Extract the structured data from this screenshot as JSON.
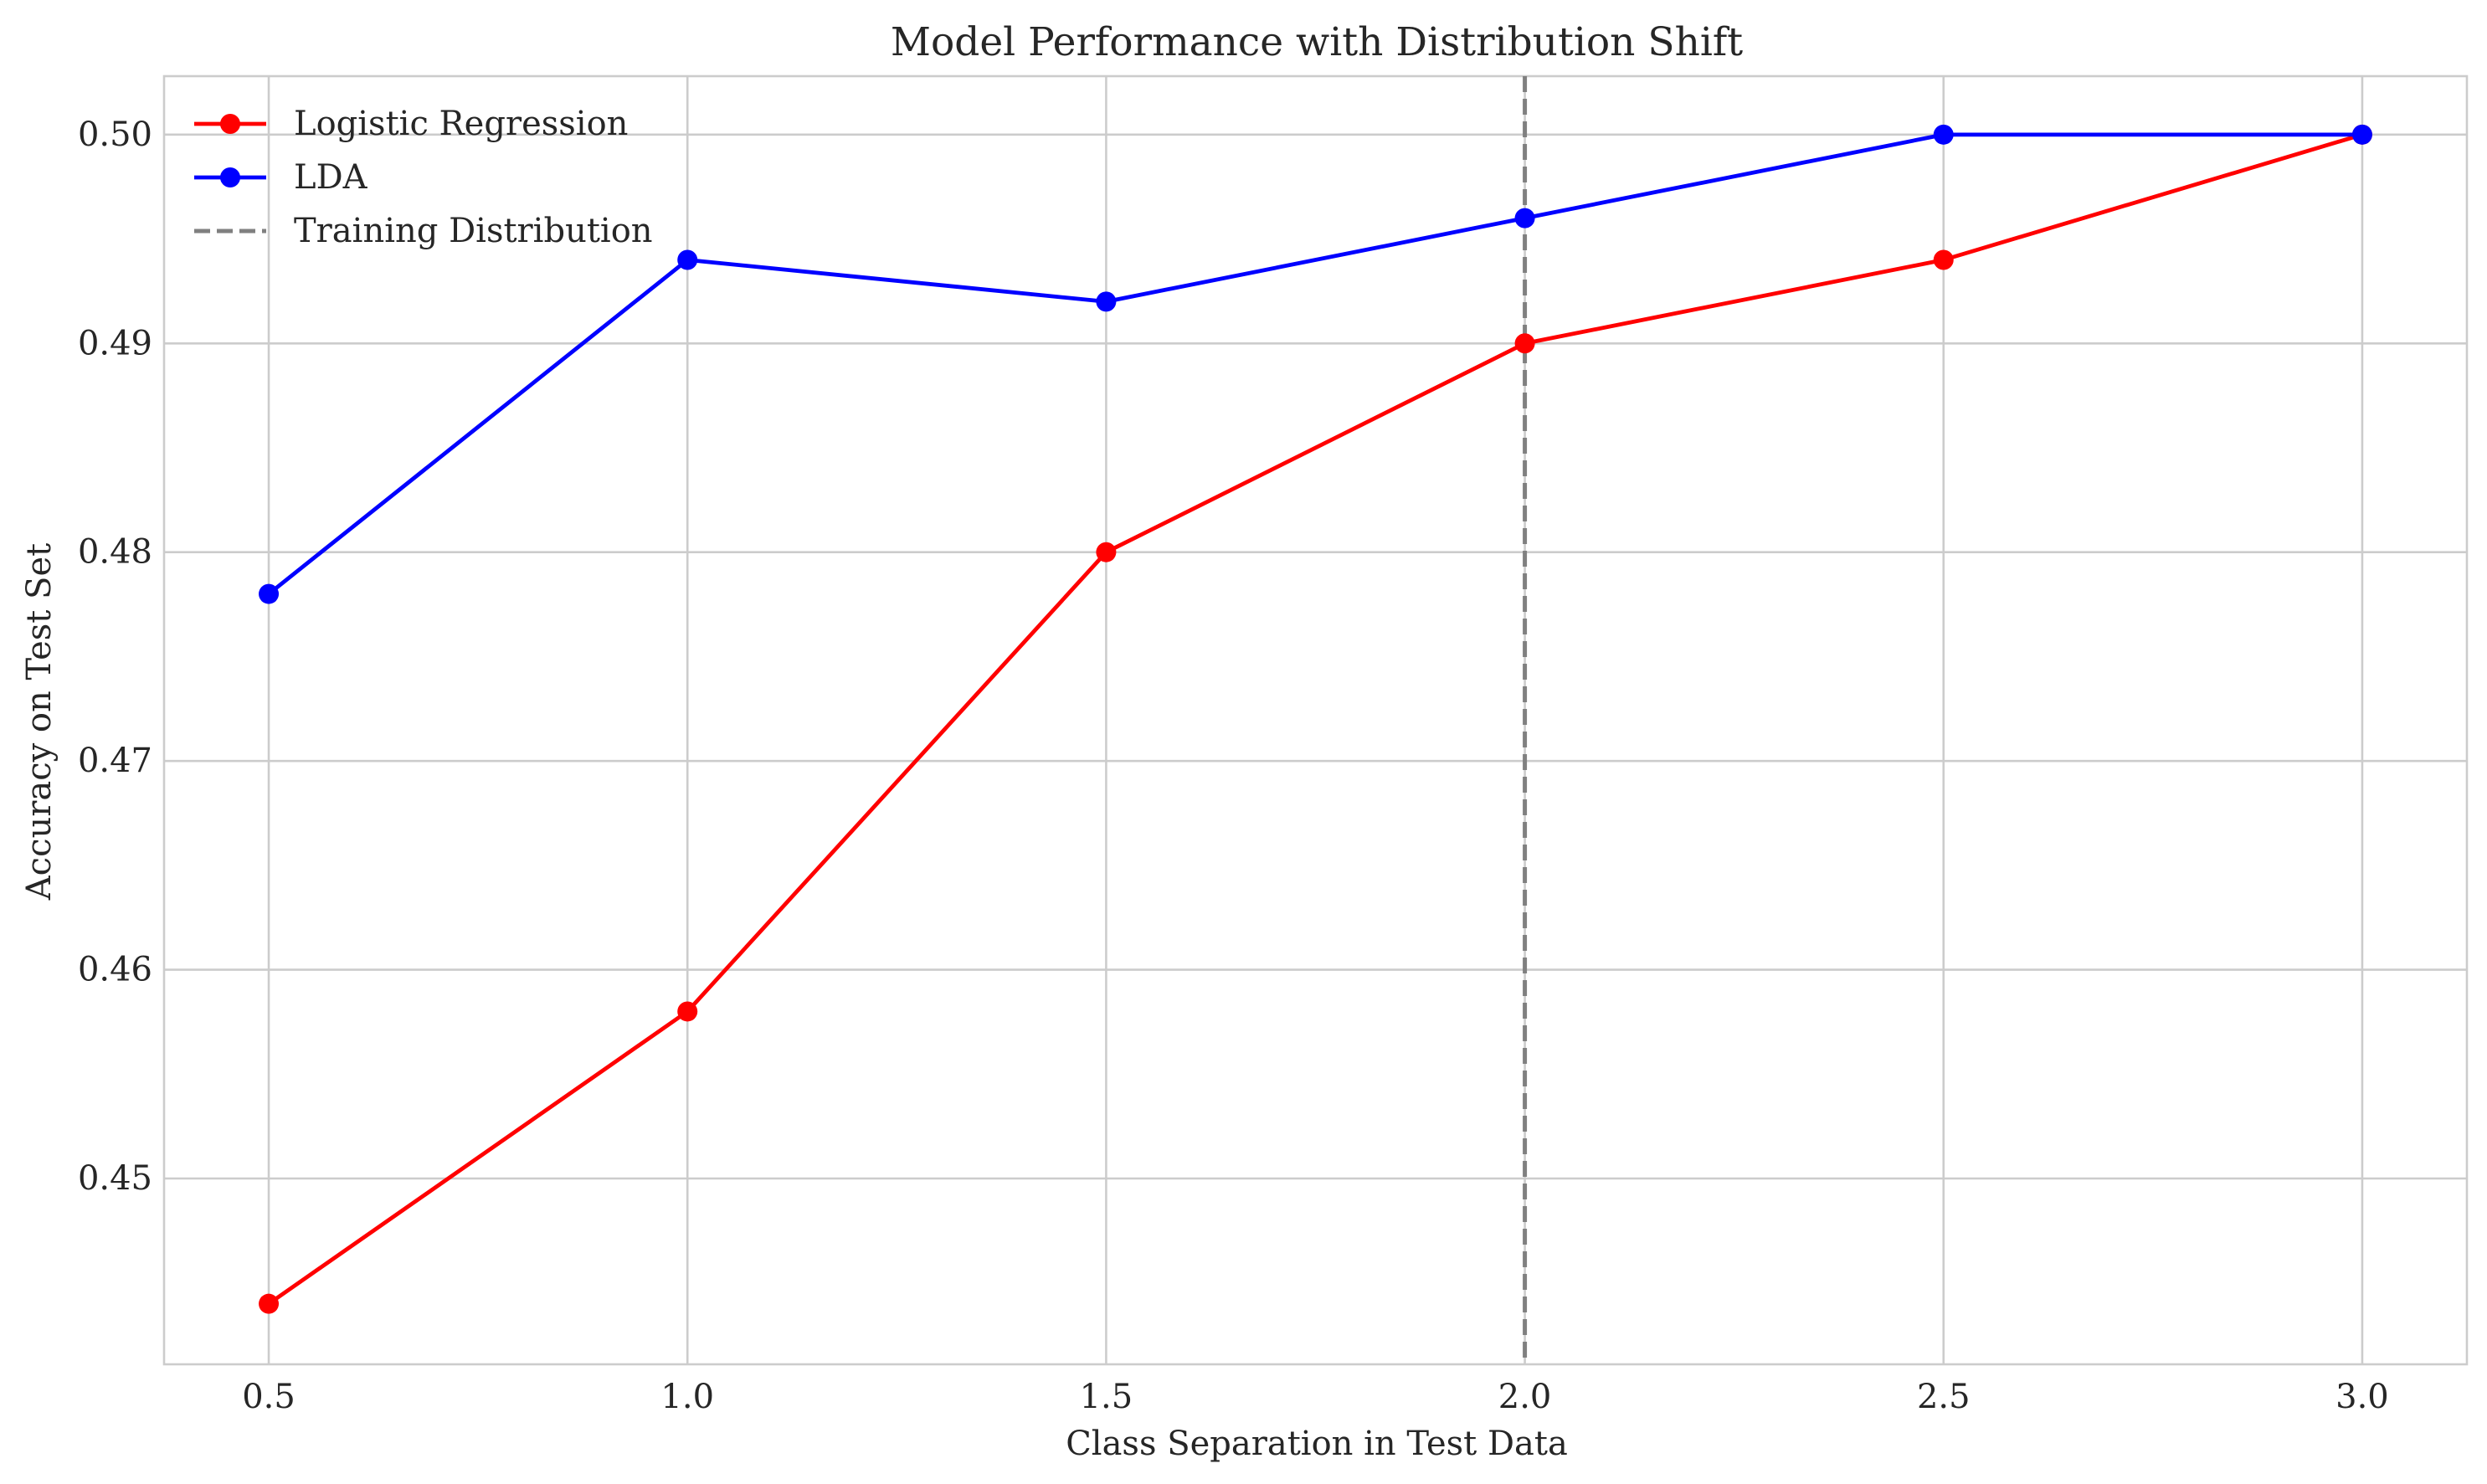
{
  "chart_data": {
    "type": "line",
    "title": "Model Performance with Distribution Shift",
    "xlabel": "Class Separation in Test Data",
    "ylabel": "Accuracy on Test Set",
    "x": [
      0.5,
      1.0,
      1.5,
      2.0,
      2.5,
      3.0
    ],
    "xticks": [
      0.5,
      1.0,
      1.5,
      2.0,
      2.5,
      3.0
    ],
    "xtick_labels": [
      "0.5",
      "1.0",
      "1.5",
      "2.0",
      "2.5",
      "3.0"
    ],
    "yticks": [
      0.45,
      0.46,
      0.47,
      0.48,
      0.49,
      0.5
    ],
    "ytick_labels": [
      "0.45",
      "0.46",
      "0.47",
      "0.48",
      "0.49",
      "0.50"
    ],
    "xlim": [
      0.375,
      3.125
    ],
    "ylim": [
      0.4411,
      0.5028
    ],
    "grid": true,
    "legend_position": "top-left",
    "series": [
      {
        "name": "Logistic Regression",
        "color": "#ff0000",
        "marker": "circle",
        "values": [
          0.444,
          0.458,
          0.48,
          0.49,
          0.494,
          0.5
        ]
      },
      {
        "name": "LDA",
        "color": "#0000ff",
        "marker": "circle",
        "values": [
          0.478,
          0.494,
          0.492,
          0.496,
          0.5,
          0.5
        ]
      }
    ],
    "reference_lines": [
      {
        "name": "Training Distribution",
        "orientation": "vertical",
        "x": 2.0,
        "color": "#808080",
        "style": "dashed"
      }
    ]
  }
}
